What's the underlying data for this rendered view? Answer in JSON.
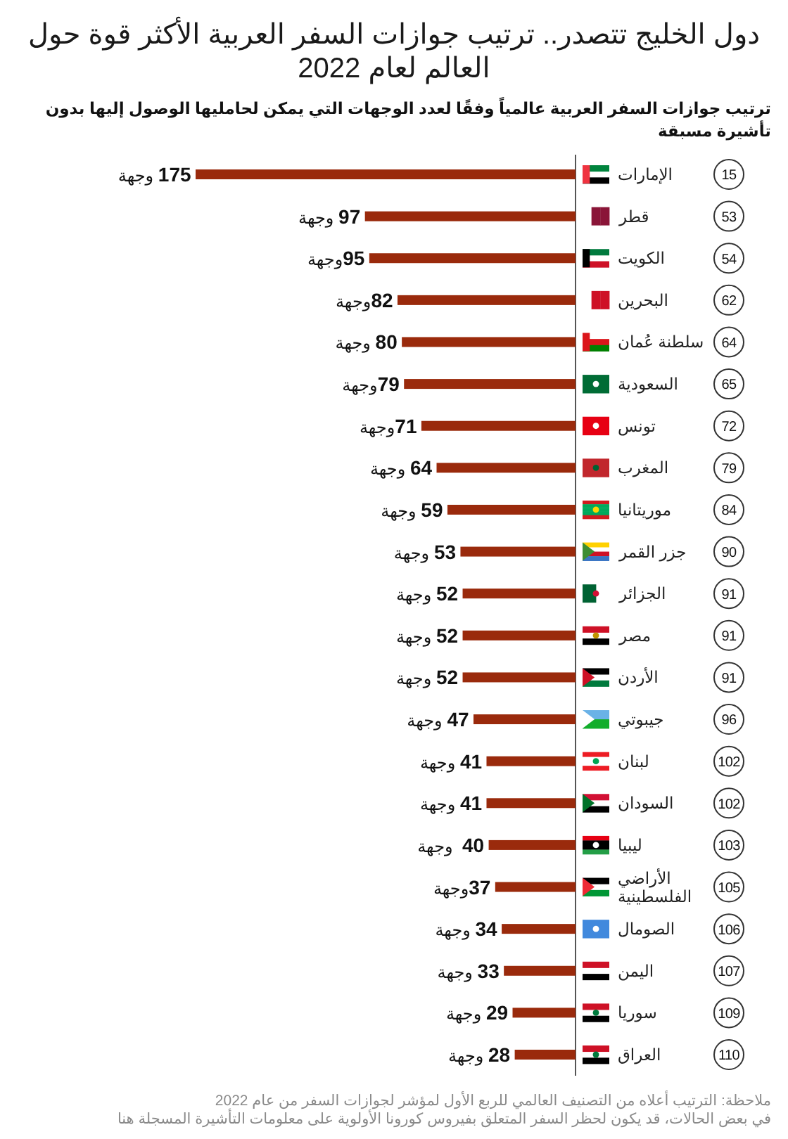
{
  "chart_data": {
    "type": "bar",
    "orientation": "horizontal",
    "title": "دول الخليج تتصدر.. ترتيب جوازات السفر العربية الأكثر قوة حول العالم لعام 2022",
    "subtitle": "ترتيب جوازات السفر العربية عالمياً وفقًا لعدد الوجهات التي يمكن لحامليها الوصول إليها بدون تأشيرة مسبقة",
    "categories": [
      "الإمارات",
      "قطر",
      "الكويت",
      "البحرين",
      "سلطنة عُمان",
      "السعودية",
      "تونس",
      "المغرب",
      "موريتانيا",
      "جزر القمر",
      "الجزائر",
      "مصر",
      "الأردن",
      "جيبوتي",
      "لبنان",
      "السودان",
      "ليبيا",
      "الأراضي الفلسطينية",
      "الصومال",
      "اليمن",
      "سوريا",
      "العراق"
    ],
    "y2_categories": [
      "15",
      "53",
      "54",
      "62",
      "64",
      "65",
      "72",
      "79",
      "84",
      "90",
      "91",
      "91",
      "91",
      "96",
      "102",
      "102",
      "103",
      "105",
      "106",
      "107",
      "109",
      "110"
    ],
    "values": [
      175,
      97,
      95,
      82,
      80,
      79,
      71,
      64,
      59,
      53,
      52,
      52,
      52,
      47,
      41,
      41,
      40,
      37,
      34,
      33,
      29,
      28
    ],
    "value_labels": [
      "175 وجهة",
      "97 وجهة",
      "95وجهة",
      "82وجهة",
      "80 وجهة",
      "79وجهة",
      "71وجهة",
      "64 وجهة",
      "59 وجهة",
      "53 وجهة",
      "52 وجهة",
      "52 وجهة",
      "52 وجهة",
      "47 وجهة",
      "41 وجهة",
      "41 وجهة",
      "40  وجهة",
      "37وجهة",
      "34 وجهة",
      "33 وجهة",
      "29 وجهة",
      "28 وجهة"
    ],
    "color": "#9a2a0c",
    "xlim": [
      175,
      0
    ],
    "tick_labels": "y",
    "annotations": [
      "ملاحظة: الترتيب أعلاه من التصنيف العالمي للربع الأول لمؤشر لجوازات السفر من عام 2022",
      "في بعض الحالات، قد يكون لحظر السفر المتعلق بفيروس كورونا الأولوية على معلومات التأشيرة المسجلة هنا"
    ]
  }
}
